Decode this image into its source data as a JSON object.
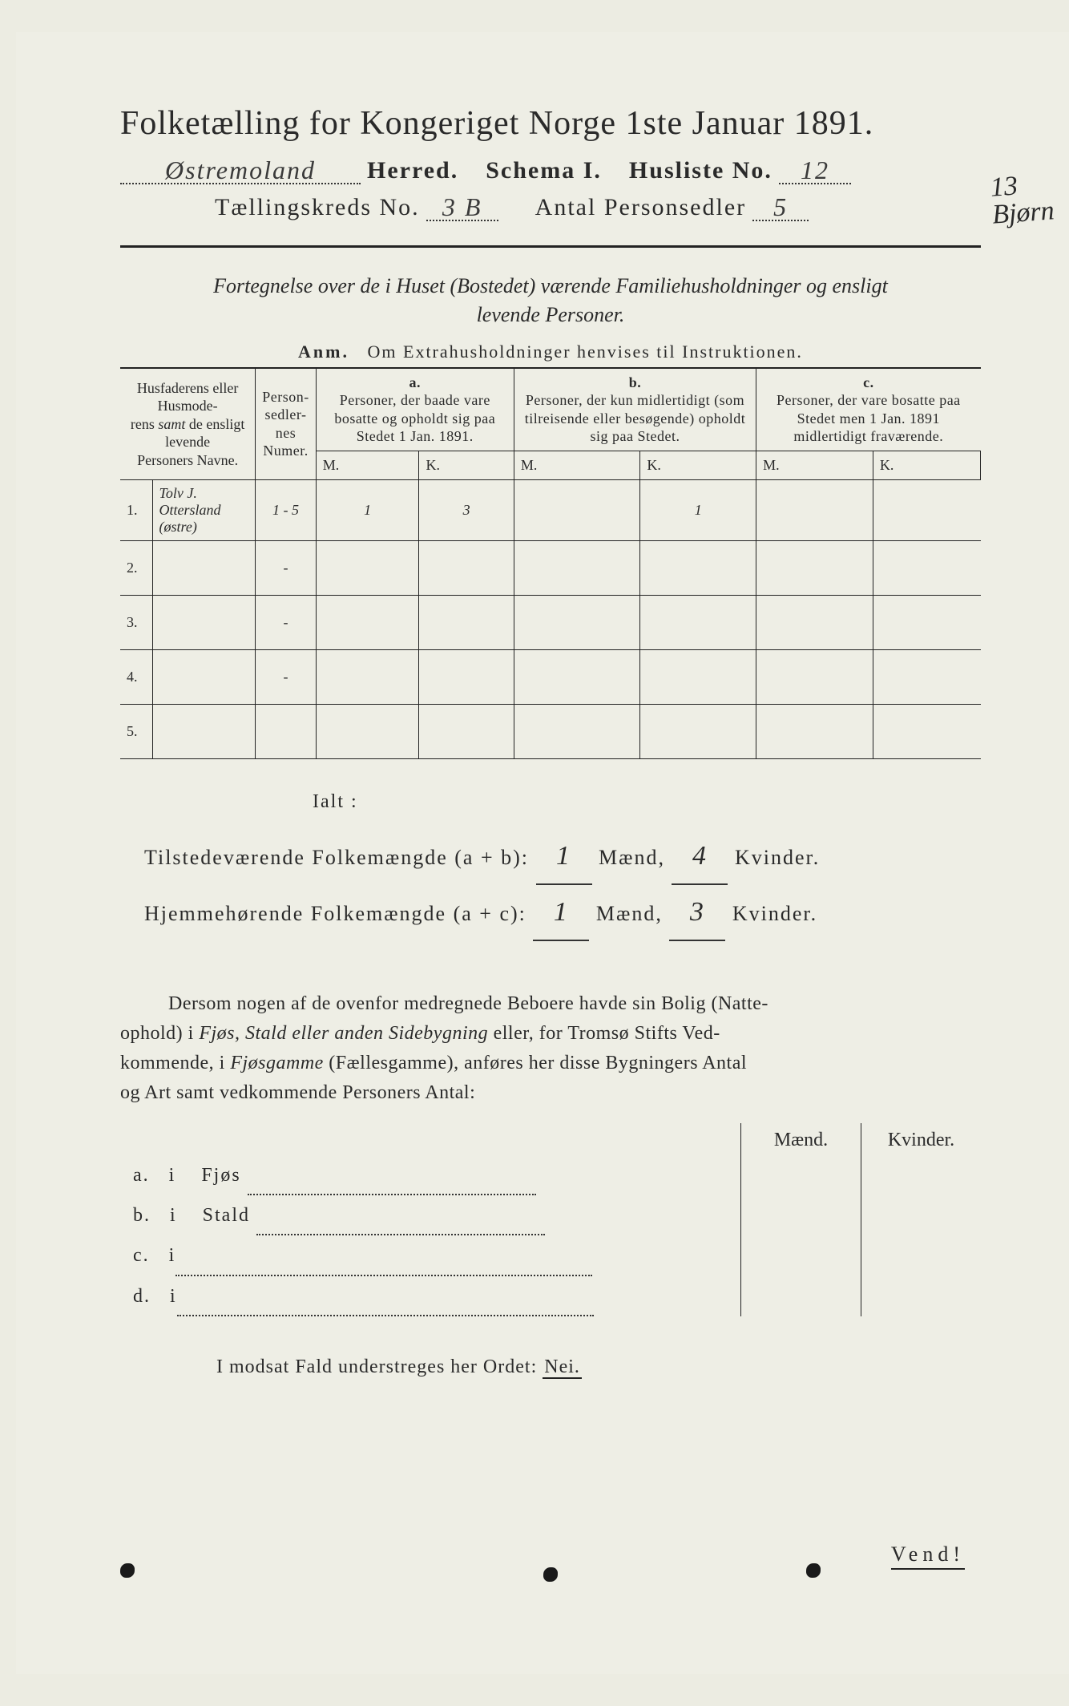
{
  "title": "Folketælling for Kongeriget Norge 1ste Januar 1891.",
  "header": {
    "herred_value": "Østremoland",
    "herred_label": "Herred.",
    "schema_label": "Schema I.",
    "husliste_label": "Husliste No.",
    "husliste_value": "12",
    "kreds_label": "Tællingskreds No.",
    "kreds_value": "3 B",
    "antal_label": "Antal Personsedler",
    "antal_value": "5",
    "margin_note": "13\nBjørn"
  },
  "intro": {
    "line1_italic": "Fortegnelse over de i Huset (Bostedet) værende Familiehusholdninger og ensligt",
    "line2_italic": "levende Personer.",
    "anm_label": "Anm.",
    "anm_text": "Om Extrahusholdninger henvises til Instruktionen."
  },
  "table": {
    "head_name": "Husfaderens eller Husmoderens samt de ensligt levende Personers Navne.",
    "head_name_italic": "samt",
    "head_numer": "Person-\nsedler-\nnes\nNumer.",
    "col_a": "a.",
    "col_a_text": "Personer, der baade vare bosatte og opholdt sig paa Stedet 1 Jan. 1891.",
    "col_b": "b.",
    "col_b_text": "Personer, der kun midlertidigt (som tilreisende eller besøgende) opholdt sig paa Stedet.",
    "col_c": "c.",
    "col_c_text": "Personer, der vare bosatte paa Stedet men 1 Jan. 1891 midlertidigt fraværende.",
    "M": "M.",
    "K": "K.",
    "rows": [
      {
        "n": "1.",
        "name": "Tolv J. Ottersland (østre)",
        "numer": "1 - 5",
        "aM": "1",
        "aK": "3",
        "bM": "",
        "bK": "1",
        "cM": "",
        "cK": ""
      },
      {
        "n": "2.",
        "name": "",
        "numer": "-",
        "aM": "",
        "aK": "",
        "bM": "",
        "bK": "",
        "cM": "",
        "cK": ""
      },
      {
        "n": "3.",
        "name": "",
        "numer": "-",
        "aM": "",
        "aK": "",
        "bM": "",
        "bK": "",
        "cM": "",
        "cK": ""
      },
      {
        "n": "4.",
        "name": "",
        "numer": "-",
        "aM": "",
        "aK": "",
        "bM": "",
        "bK": "",
        "cM": "",
        "cK": ""
      },
      {
        "n": "5.",
        "name": "",
        "numer": "",
        "aM": "",
        "aK": "",
        "bM": "",
        "bK": "",
        "cM": "",
        "cK": ""
      }
    ]
  },
  "totals": {
    "ialt": "Ialt :",
    "line1_label": "Tilstedeværende Folkemængde (a + b):",
    "line1_m": "1",
    "line1_k": "4",
    "line2_label": "Hjemmehørende Folkemængde (a + c):",
    "line2_m": "1",
    "line2_k": "3",
    "maend": "Mænd,",
    "kvinder": "Kvinder."
  },
  "para": "Dersom nogen af de ovenfor medregnede Beboere havde sin Bolig (Natteophold) i Fjøs, Stald eller anden Sidebygning eller, for Tromsø Stifts Vedkommende, i Fjøsgamme (Fællesgamme), anføres her disse Bygningers Antal og Art samt vedkommende Personers Antal:",
  "side": {
    "maend": "Mænd.",
    "kvinder": "Kvinder.",
    "rows": [
      {
        "k": "a.",
        "i": "i",
        "label": "Fjøs"
      },
      {
        "k": "b.",
        "i": "i",
        "label": "Stald"
      },
      {
        "k": "c.",
        "i": "i",
        "label": ""
      },
      {
        "k": "d.",
        "i": "i",
        "label": ""
      }
    ]
  },
  "modsat": "I modsat Fald understreges her Ordet:",
  "nei": "Nei.",
  "vend": "Vend!",
  "colors": {
    "paper": "#eeeee5",
    "ink": "#2a2a2a",
    "rule": "#222222"
  }
}
